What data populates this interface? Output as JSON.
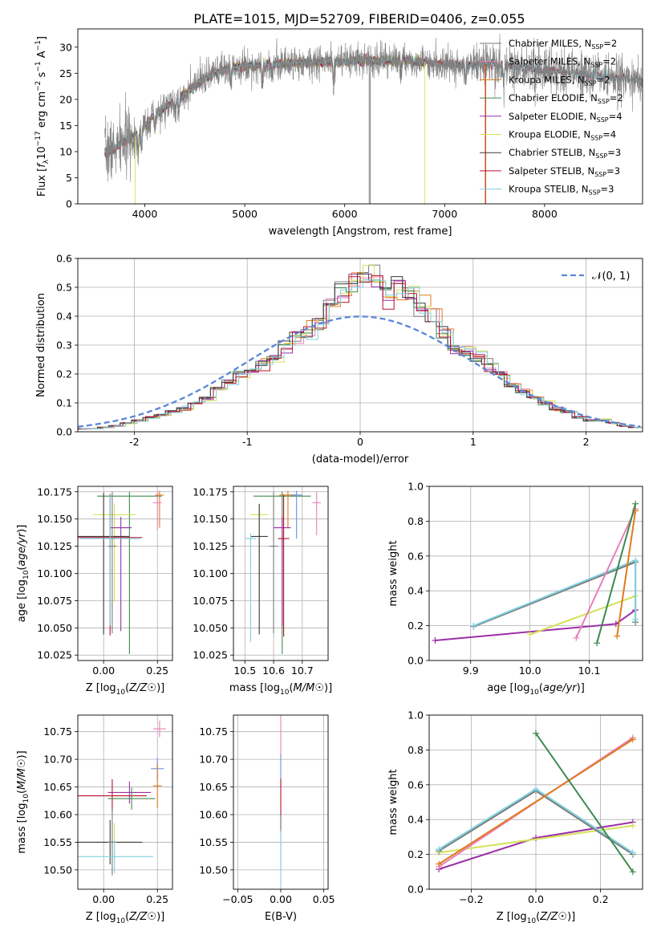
{
  "figure_title": "PLATE=1015, MJD=52709, FIBERID=0406, z=0.055",
  "colors": {
    "Chabrier MILES": "#7a7a7a",
    "Salpeter MILES": "#ea80b8",
    "Kroupa MILES": "#e07b1f",
    "Chabrier ELODIE": "#3f8a4e",
    "Salpeter ELODIE": "#9b2fa8",
    "Kroupa ELODIE": "#d4e157",
    "Chabrier STELIB": "#3a3a3a",
    "Salpeter STELIB": "#b5122c",
    "Kroupa STELIB": "#7fd1e0",
    "data": "#808080",
    "normal": "#5b86d6",
    "extra_blue": "#6d8fe6"
  },
  "chart_data": [
    {
      "id": "spectrum",
      "type": "line",
      "title": "PLATE=1015, MJD=52709, FIBERID=0406, z=0.055",
      "xlabel": "wavelength [Angstrom, rest frame]",
      "ylabel_parts": [
        "Flux [",
        "f",
        "λ",
        "10",
        "−17",
        " erg cm",
        "−2",
        " s",
        "−1",
        " A",
        "−1",
        "]"
      ],
      "xlim": [
        3330,
        8980
      ],
      "ylim": [
        0,
        33.5
      ],
      "xticks": [
        4000,
        5000,
        6000,
        7000,
        8000
      ],
      "yticks": [
        0,
        5,
        10,
        15,
        20,
        25,
        30
      ],
      "x_range": [
        3600,
        9000
      ],
      "profile_points": [
        [
          3600,
          10
        ],
        [
          3700,
          10.5
        ],
        [
          3800,
          12
        ],
        [
          3900,
          13
        ],
        [
          4000,
          15
        ],
        [
          4100,
          17
        ],
        [
          4200,
          18.5
        ],
        [
          4300,
          19.5
        ],
        [
          4400,
          21
        ],
        [
          4500,
          22.5
        ],
        [
          4600,
          24
        ],
        [
          4700,
          25
        ],
        [
          4800,
          25.7
        ],
        [
          4900,
          26.2
        ],
        [
          5000,
          26.3
        ],
        [
          5200,
          26.6
        ],
        [
          5500,
          27
        ],
        [
          5800,
          27.1
        ],
        [
          6000,
          27.2
        ],
        [
          6300,
          27.5
        ],
        [
          6500,
          27.4
        ],
        [
          6600,
          27.5
        ],
        [
          6800,
          27.1
        ],
        [
          7000,
          26.8
        ],
        [
          7200,
          26.5
        ],
        [
          7400,
          26.8
        ],
        [
          7600,
          26.5
        ],
        [
          7800,
          26
        ],
        [
          8000,
          25.5
        ],
        [
          8300,
          25
        ],
        [
          8600,
          24.3
        ],
        [
          9000,
          23.5
        ]
      ],
      "absorption_lines": [
        [
          3934,
          4
        ],
        [
          3969,
          3.5
        ],
        [
          4102,
          3
        ],
        [
          4304,
          3
        ],
        [
          4340,
          2.5
        ],
        [
          4861,
          2.5
        ],
        [
          5175,
          3.5
        ],
        [
          5270,
          2
        ],
        [
          5890,
          4
        ],
        [
          6563,
          2.5
        ],
        [
          7210,
          3
        ],
        [
          7590,
          3
        ]
      ],
      "legend": [
        {
          "label": "Chabrier MILES, N",
          "sub": "SSP",
          "value": "=2",
          "color_key": "Chabrier MILES"
        },
        {
          "label": "Salpeter MILES, N",
          "sub": "SSP",
          "value": "=2",
          "color_key": "Salpeter MILES"
        },
        {
          "label": "Kroupa MILES, N",
          "sub": "SSP",
          "value": "=2",
          "color_key": "Kroupa MILES"
        },
        {
          "label": "Chabrier ELODIE, N",
          "sub": "SSP",
          "value": "=2",
          "color_key": "Chabrier ELODIE"
        },
        {
          "label": "Salpeter ELODIE, N",
          "sub": "SSP",
          "value": "=4",
          "color_key": "Salpeter ELODIE"
        },
        {
          "label": "Kroupa ELODIE, N",
          "sub": "SSP",
          "value": "=4",
          "color_key": "Kroupa ELODIE"
        },
        {
          "label": "Chabrier STELIB, N",
          "sub": "SSP",
          "value": "=3",
          "color_key": "Chabrier STELIB"
        },
        {
          "label": "Salpeter STELIB, N",
          "sub": "SSP",
          "value": "=3",
          "color_key": "Salpeter STELIB"
        },
        {
          "label": "Kroupa STELIB, N",
          "sub": "SSP",
          "value": "=3",
          "color_key": "Kroupa STELIB"
        }
      ]
    },
    {
      "id": "residuals",
      "type": "histogram",
      "xlabel": "(data-model)/error",
      "ylabel": "Normed distribution",
      "xlim": [
        -2.5,
        2.5
      ],
      "ylim": [
        0,
        0.6
      ],
      "xticks": [
        -2,
        -1,
        0,
        1,
        2
      ],
      "yticks": [
        0.0,
        0.1,
        0.2,
        0.3,
        0.4,
        0.5,
        0.6
      ],
      "bin_width": 0.1,
      "base_heights": [
        0.01,
        0.01,
        0.015,
        0.02,
        0.03,
        0.04,
        0.05,
        0.06,
        0.07,
        0.08,
        0.1,
        0.12,
        0.15,
        0.18,
        0.21,
        0.22,
        0.24,
        0.27,
        0.3,
        0.33,
        0.35,
        0.38,
        0.43,
        0.48,
        0.52,
        0.54,
        0.52,
        0.48,
        0.51,
        0.48,
        0.43,
        0.38,
        0.34,
        0.3,
        0.28,
        0.26,
        0.23,
        0.2,
        0.16,
        0.14,
        0.12,
        0.1,
        0.08,
        0.07,
        0.05,
        0.04,
        0.04,
        0.03,
        0.02,
        0.015
      ],
      "gaussian_legend": "𝒩(0, 1)"
    },
    {
      "id": "age_vs_Z",
      "type": "errorbar",
      "xlabel": "Z [log10(Z/Z☉)]",
      "ylabel": "age [log10(age/yr)]",
      "xlim": [
        -0.12,
        0.32
      ],
      "ylim": [
        10.02,
        10.18
      ],
      "xticks": [
        0.0,
        0.25
      ],
      "xtick_labels": [
        "0.00",
        "0.25"
      ],
      "yticks": [
        10.025,
        10.05,
        10.075,
        10.1,
        10.125,
        10.15,
        10.175
      ],
      "ytick_labels": [
        "10.025",
        "10.050",
        "10.075",
        "10.100",
        "10.125",
        "10.150",
        "10.175"
      ],
      "points": [
        {
          "color_key": "Chabrier ELODIE",
          "x": 0.12,
          "y": 10.171,
          "xerr": 0.15,
          "yerr_low": 0.145,
          "yerr_high": 0.004
        },
        {
          "color_key": "Kroupa MILES",
          "x": 0.26,
          "y": 10.172,
          "xerr": 0.02,
          "yerr_low": 0.03,
          "yerr_high": 0.004
        },
        {
          "color_key": "Salpeter MILES",
          "x": 0.25,
          "y": 10.165,
          "xerr": 0.02,
          "yerr_low": 0.025,
          "yerr_high": 0.01
        },
        {
          "color_key": "Kroupa ELODIE",
          "x": 0.05,
          "y": 10.154,
          "xerr": 0.1,
          "yerr_low": 0.08,
          "yerr_high": 0.01
        },
        {
          "color_key": "Salpeter ELODIE",
          "x": 0.08,
          "y": 10.142,
          "xerr": 0.05,
          "yerr_low": 0.095,
          "yerr_high": 0.01
        },
        {
          "color_key": "Chabrier STELIB",
          "x": 0.0,
          "y": 10.134,
          "xerr": 0.12,
          "yerr_low": 0.09,
          "yerr_high": 0.04
        },
        {
          "color_key": "Salpeter STELIB",
          "x": 0.03,
          "y": 10.133,
          "xerr": 0.15,
          "yerr_low": 0.09,
          "yerr_high": 0.04
        },
        {
          "color_key": "Kroupa STELIB",
          "x": 0.03,
          "y": 10.132,
          "xerr": 0.14,
          "yerr_low": 0.08,
          "yerr_high": 0.04
        },
        {
          "color_key": "Chabrier MILES",
          "x": 0.04,
          "y": 10.125,
          "xerr": 0.02,
          "yerr_low": 0.08,
          "yerr_high": 0.05
        }
      ]
    },
    {
      "id": "age_vs_mass",
      "type": "errorbar",
      "xlabel": "mass [log10(M/M☉)]",
      "ylabel": "",
      "xlim": [
        10.46,
        10.79
      ],
      "ylim": [
        10.02,
        10.18
      ],
      "xticks": [
        10.5,
        10.6,
        10.7
      ],
      "xtick_labels": [
        "10.5",
        "10.6",
        "10.7"
      ],
      "yticks": [
        10.025,
        10.05,
        10.075,
        10.1,
        10.125,
        10.15,
        10.175
      ],
      "ytick_labels": [
        "10.025",
        "10.050",
        "10.075",
        "10.100",
        "10.125",
        "10.150",
        "10.175"
      ],
      "points": [
        {
          "color_key": "Chabrier ELODIE",
          "x": 10.63,
          "y": 10.171,
          "xerr": 0.1,
          "yerr_low": 0.145,
          "yerr_high": 0.004
        },
        {
          "color_key": "Kroupa MILES",
          "x": 10.65,
          "y": 10.172,
          "xerr": 0.03,
          "yerr_low": 0.03,
          "yerr_high": 0.004
        },
        {
          "color_key": "Salpeter MILES",
          "x": 10.75,
          "y": 10.165,
          "xerr": 0.015,
          "yerr_low": 0.03,
          "yerr_high": 0.01
        },
        {
          "color_key": "extra_blue",
          "x": 10.68,
          "y": 10.172,
          "xerr": 0.02,
          "yerr_low": 0.04,
          "yerr_high": 0.004
        },
        {
          "color_key": "Kroupa ELODIE",
          "x": 10.55,
          "y": 10.154,
          "xerr": 0.03,
          "yerr_low": 0.08,
          "yerr_high": 0.01
        },
        {
          "color_key": "Salpeter ELODIE",
          "x": 10.63,
          "y": 10.142,
          "xerr": 0.03,
          "yerr_low": 0.09,
          "yerr_high": 0.01
        },
        {
          "color_key": "Chabrier STELIB",
          "x": 10.55,
          "y": 10.134,
          "xerr": 0.03,
          "yerr_low": 0.09,
          "yerr_high": 0.03
        },
        {
          "color_key": "Salpeter STELIB",
          "x": 10.635,
          "y": 10.132,
          "xerr": 0.02,
          "yerr_low": 0.09,
          "yerr_high": 0.04
        },
        {
          "color_key": "Kroupa STELIB",
          "x": 10.52,
          "y": 10.132,
          "xerr": 0.02,
          "yerr_low": 0.095,
          "yerr_high": 0.005
        },
        {
          "color_key": "Chabrier MILES",
          "x": 10.6,
          "y": 10.125,
          "xerr": 0.015,
          "yerr_low": 0.08,
          "yerr_high": 0.05
        }
      ]
    },
    {
      "id": "mass_weight_vs_age",
      "type": "line",
      "xlabel": "age [log10(age/yr)]",
      "ylabel": "mass weight",
      "xlim": [
        9.83,
        10.19
      ],
      "ylim": [
        0.0,
        1.0
      ],
      "xticks": [
        9.9,
        10.0,
        10.1
      ],
      "xtick_labels": [
        "9.9",
        "10.0",
        "10.1"
      ],
      "yticks": [
        0.0,
        0.2,
        0.4,
        0.6,
        0.8,
        1.0
      ],
      "ytick_labels": [
        "0.0",
        "0.2",
        "0.4",
        "0.6",
        "0.8",
        "1.0"
      ],
      "grid": true,
      "series": [
        {
          "color_key": "Salpeter ELODIE",
          "x": [
            9.84,
            10.145,
            10.178,
            10.178
          ],
          "y": [
            0.115,
            0.21,
            0.29,
            0.29
          ]
        },
        {
          "color_key": "Kroupa ELODIE",
          "x": [
            10.0,
            10.178,
            10.178
          ],
          "y": [
            0.15,
            0.37,
            0.22
          ]
        },
        {
          "color_key": "Chabrier MILES",
          "x": [
            9.905,
            10.178,
            10.178
          ],
          "y": [
            0.195,
            0.565,
            0.22
          ]
        },
        {
          "color_key": "Kroupa STELIB",
          "x": [
            9.905,
            10.178,
            10.178
          ],
          "y": [
            0.2,
            0.575,
            0.235
          ]
        },
        {
          "color_key": "Salpeter MILES",
          "x": [
            10.078,
            10.178
          ],
          "y": [
            0.13,
            0.87
          ]
        },
        {
          "color_key": "Kroupa MILES",
          "x": [
            10.147,
            10.178
          ],
          "y": [
            0.14,
            0.86
          ]
        },
        {
          "color_key": "Chabrier ELODIE",
          "x": [
            10.113,
            10.178
          ],
          "y": [
            0.1,
            0.9
          ]
        }
      ]
    },
    {
      "id": "mass_vs_Z",
      "type": "errorbar",
      "xlabel": "Z [log10(Z/Z☉)]",
      "ylabel": "mass [log10(M/M☉)]",
      "xlim": [
        -0.12,
        0.32
      ],
      "ylim": [
        10.465,
        10.78
      ],
      "xticks": [
        0.0,
        0.25
      ],
      "xtick_labels": [
        "0.00",
        "0.25"
      ],
      "yticks": [
        10.5,
        10.55,
        10.6,
        10.65,
        10.7,
        10.75
      ],
      "ytick_labels": [
        "10.50",
        "10.55",
        "10.60",
        "10.65",
        "10.70",
        "10.75"
      ],
      "points": [
        {
          "color_key": "Salpeter MILES",
          "x": 0.26,
          "y": 10.755,
          "xerr": 0.03,
          "yerr": 0.015
        },
        {
          "color_key": "extra_blue",
          "x": 0.25,
          "y": 10.683,
          "xerr": 0.03,
          "yerr": 0.02
        },
        {
          "color_key": "Kroupa MILES",
          "x": 0.25,
          "y": 10.652,
          "xerr": 0.02,
          "yerr": 0.04
        },
        {
          "color_key": "Salpeter ELODIE",
          "x": 0.12,
          "y": 10.64,
          "xerr": 0.1,
          "yerr": 0.02
        },
        {
          "color_key": "Salpeter STELIB",
          "x": 0.04,
          "y": 10.634,
          "xerr": 0.16,
          "yerr": 0.03
        },
        {
          "color_key": "Chabrier ELODIE",
          "x": 0.13,
          "y": 10.629,
          "xerr": 0.11,
          "yerr": 0.02
        },
        {
          "color_key": "Kroupa ELODIE",
          "x": 0.05,
          "y": 10.55,
          "xerr": 0.1,
          "yerr": 0.035
        },
        {
          "color_key": "Chabrier STELIB",
          "x": 0.03,
          "y": 10.55,
          "xerr": 0.15,
          "yerr": 0.04
        },
        {
          "color_key": "Chabrier MILES",
          "x": 0.04,
          "y": 10.55,
          "xerr": 0.02,
          "yerr": 0.06
        },
        {
          "color_key": "Kroupa STELIB",
          "x": 0.05,
          "y": 10.524,
          "xerr": 0.18,
          "yerr": 0.03
        }
      ]
    },
    {
      "id": "mass_vs_ebv",
      "type": "errorbar",
      "xlabel": "E(B-V)",
      "ylabel": "",
      "xlim": [
        -0.055,
        0.055
      ],
      "ylim": [
        10.465,
        10.78
      ],
      "xticks": [
        -0.05,
        0.0,
        0.05
      ],
      "xtick_labels": [
        "−0.05",
        "0.00",
        "0.05"
      ],
      "yticks": [
        10.5,
        10.55,
        10.6,
        10.65,
        10.7,
        10.75
      ],
      "ytick_labels": [
        "10.50",
        "10.55",
        "10.60",
        "10.65",
        "10.70",
        "10.75"
      ],
      "points": [
        {
          "color_key": "Salpeter MILES",
          "x": 0.0,
          "y": 10.74,
          "xerr": 0.0,
          "yerr": 0.04
        },
        {
          "color_key": "extra_blue",
          "x": 0.0,
          "y": 10.68,
          "xerr": 0.0,
          "yerr": 0.03
        },
        {
          "color_key": "Salpeter STELIB",
          "x": 0.0,
          "y": 10.62,
          "xerr": 0.0,
          "yerr": 0.045
        },
        {
          "color_key": "Chabrier MILES",
          "x": 0.0,
          "y": 10.55,
          "xerr": 0.0,
          "yerr": 0.05
        },
        {
          "color_key": "Kroupa STELIB",
          "x": 0.0,
          "y": 10.52,
          "xerr": 0.0,
          "yerr": 0.05
        }
      ]
    },
    {
      "id": "mass_weight_vs_Z",
      "type": "line",
      "xlabel": "Z [log10(Z/Z☉)]",
      "ylabel": "mass weight",
      "xlim": [
        -0.33,
        0.33
      ],
      "ylim": [
        0.0,
        1.0
      ],
      "xticks": [
        -0.2,
        0.0,
        0.2
      ],
      "xtick_labels": [
        "−0.2",
        "0.0",
        "0.2"
      ],
      "yticks": [
        0.0,
        0.2,
        0.4,
        0.6,
        0.8,
        1.0
      ],
      "ytick_labels": [
        "0.0",
        "0.2",
        "0.4",
        "0.6",
        "0.8",
        "1.0"
      ],
      "grid": true,
      "series": [
        {
          "color_key": "Salpeter ELODIE",
          "x": [
            -0.3,
            0.0,
            0.3
          ],
          "y": [
            0.115,
            0.295,
            0.385
          ]
        },
        {
          "color_key": "Kroupa ELODIE",
          "x": [
            -0.3,
            0.3
          ],
          "y": [
            0.21,
            0.365
          ]
        },
        {
          "color_key": "Chabrier MILES",
          "x": [
            -0.3,
            0.0,
            0.3
          ],
          "y": [
            0.22,
            0.565,
            0.2
          ]
        },
        {
          "color_key": "Kroupa STELIB",
          "x": [
            -0.3,
            0.0,
            0.3
          ],
          "y": [
            0.23,
            0.575,
            0.21
          ]
        },
        {
          "color_key": "Salpeter MILES",
          "x": [
            -0.3,
            0.3
          ],
          "y": [
            0.13,
            0.87
          ]
        },
        {
          "color_key": "Kroupa MILES",
          "x": [
            -0.3,
            0.3
          ],
          "y": [
            0.145,
            0.86
          ]
        },
        {
          "color_key": "Chabrier ELODIE",
          "x": [
            0.0,
            0.3
          ],
          "y": [
            0.895,
            0.1
          ]
        }
      ]
    }
  ]
}
